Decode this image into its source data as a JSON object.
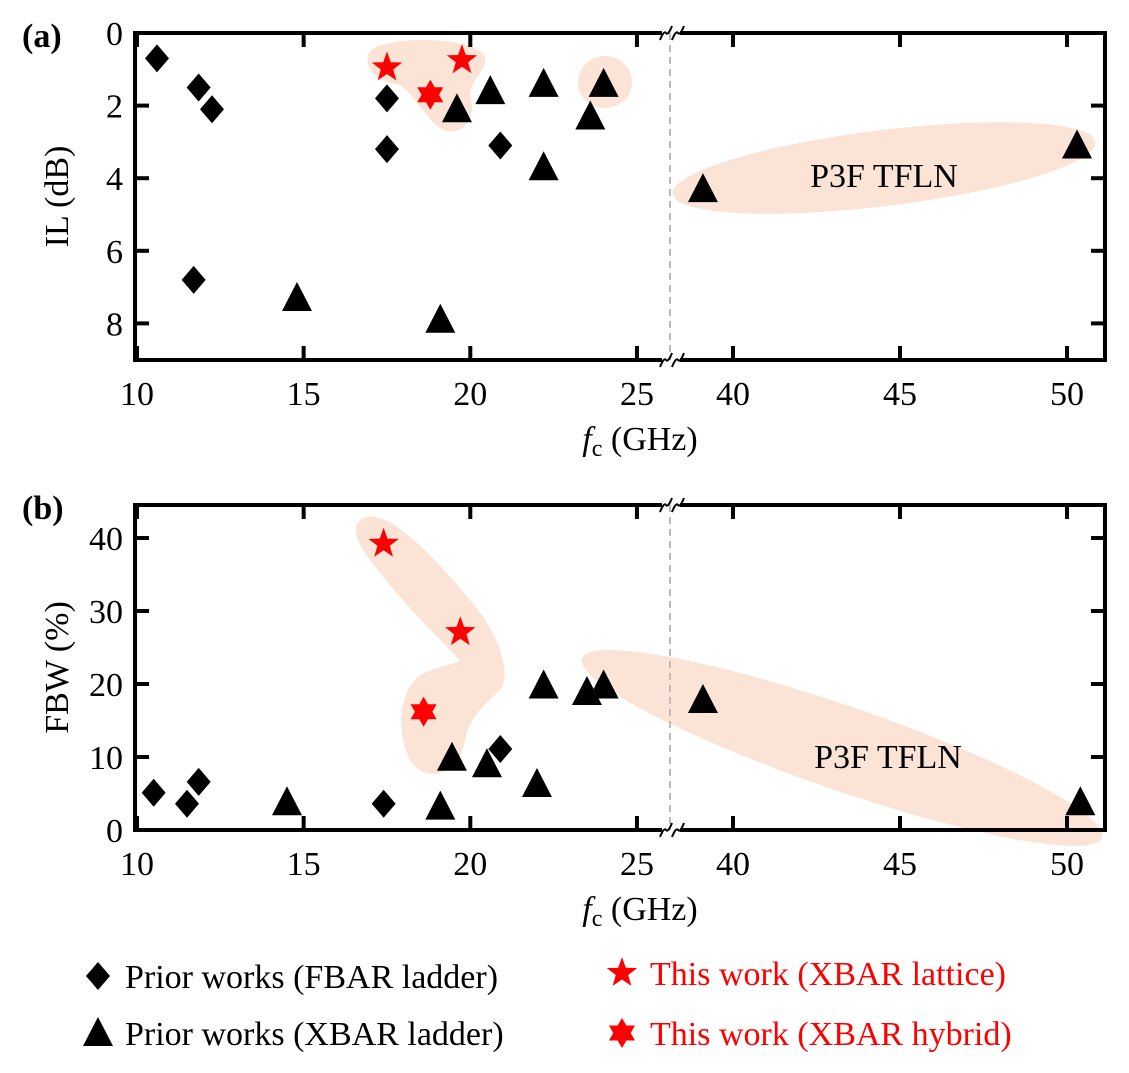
{
  "chart_data": [
    {
      "panel_label": "(a)",
      "type": "scatter",
      "xlabel_italic": "f",
      "xlabel_sub": "c",
      "xlabel_rest": " (GHz)",
      "ylabel": "IL (dB)",
      "y_reversed": true,
      "ylim": [
        0,
        9
      ],
      "xlim_segments": [
        [
          10,
          26
        ],
        [
          38,
          51.1
        ]
      ],
      "x_break": true,
      "xticks": [
        10,
        15,
        20,
        25,
        40,
        45,
        50
      ],
      "yticks": [
        0,
        2,
        4,
        6,
        8
      ],
      "annotation": "P3F TFLN",
      "series": [
        {
          "name": "Prior works (FBAR ladder)",
          "marker": "diamond",
          "color": "#000000",
          "points": [
            [
              10.6,
              0.7
            ],
            [
              11.85,
              1.5
            ],
            [
              12.25,
              2.1
            ],
            [
              11.7,
              6.8
            ],
            [
              17.5,
              1.8
            ],
            [
              17.5,
              3.2
            ],
            [
              20.9,
              3.1
            ]
          ]
        },
        {
          "name": "Prior works (XBAR ladder)",
          "marker": "triangle",
          "color": "#000000",
          "points": [
            [
              14.8,
              7.3
            ],
            [
              19.1,
              7.9
            ],
            [
              19.6,
              2.1
            ],
            [
              20.6,
              1.6
            ],
            [
              22.2,
              1.4
            ],
            [
              22.2,
              3.7
            ],
            [
              23.6,
              2.3
            ],
            [
              24.0,
              1.4
            ],
            [
              39.1,
              4.3
            ],
            [
              50.3,
              3.1
            ]
          ]
        },
        {
          "name": "This work (XBAR lattice)",
          "marker": "star",
          "color": "#ff0000",
          "points": [
            [
              17.5,
              0.95
            ],
            [
              19.75,
              0.75
            ]
          ]
        },
        {
          "name": "This work (XBAR hybrid)",
          "marker": "hexagram",
          "color": "#ff0000",
          "points": [
            [
              18.8,
              1.7
            ]
          ]
        }
      ]
    },
    {
      "panel_label": "(b)",
      "type": "scatter",
      "xlabel_italic": "f",
      "xlabel_sub": "c",
      "xlabel_rest": " (GHz)",
      "ylabel": "FBW (%)",
      "ylim": [
        0,
        44.5
      ],
      "xlim_segments": [
        [
          10,
          26
        ],
        [
          38,
          51.1
        ]
      ],
      "x_break": true,
      "xticks": [
        10,
        15,
        20,
        25,
        40,
        45,
        50
      ],
      "yticks": [
        0,
        10,
        20,
        30,
        40
      ],
      "annotation": "P3F TFLN",
      "series": [
        {
          "name": "Prior works (FBAR ladder)",
          "marker": "diamond",
          "color": "#000000",
          "points": [
            [
              10.5,
              5.1
            ],
            [
              11.5,
              3.6
            ],
            [
              11.85,
              6.6
            ],
            [
              17.4,
              3.6
            ],
            [
              20.9,
              11.1
            ]
          ]
        },
        {
          "name": "Prior works (XBAR ladder)",
          "marker": "triangle",
          "color": "#000000",
          "points": [
            [
              14.5,
              3.8
            ],
            [
              19.1,
              3.2
            ],
            [
              19.45,
              9.9
            ],
            [
              20.5,
              9.0
            ],
            [
              22.0,
              6.3
            ],
            [
              22.2,
              19.8
            ],
            [
              23.5,
              18.9
            ],
            [
              24.0,
              19.8
            ],
            [
              39.1,
              17.8
            ],
            [
              50.4,
              3.8
            ]
          ]
        },
        {
          "name": "This work (XBAR lattice)",
          "marker": "star",
          "color": "#ff0000",
          "points": [
            [
              17.4,
              39.2
            ],
            [
              19.7,
              27.1
            ]
          ]
        },
        {
          "name": "This work (XBAR hybrid)",
          "marker": "hexagram",
          "color": "#ff0000",
          "points": [
            [
              18.6,
              16.2
            ]
          ]
        }
      ]
    }
  ],
  "colors": {
    "highlight": "#fbe3d6",
    "annotation": "#c55a11",
    "this_work": "#ff0000"
  },
  "legend": {
    "items": [
      {
        "label": "Prior works (FBAR ladder)",
        "marker": "diamond",
        "color": "#000000"
      },
      {
        "label": "This work (XBAR lattice)",
        "marker": "star",
        "color": "#ff0000"
      },
      {
        "label": "Prior works (XBAR ladder)",
        "marker": "triangle",
        "color": "#000000"
      },
      {
        "label": "This work (XBAR hybrid)",
        "marker": "hexagram",
        "color": "#ff0000"
      }
    ]
  }
}
